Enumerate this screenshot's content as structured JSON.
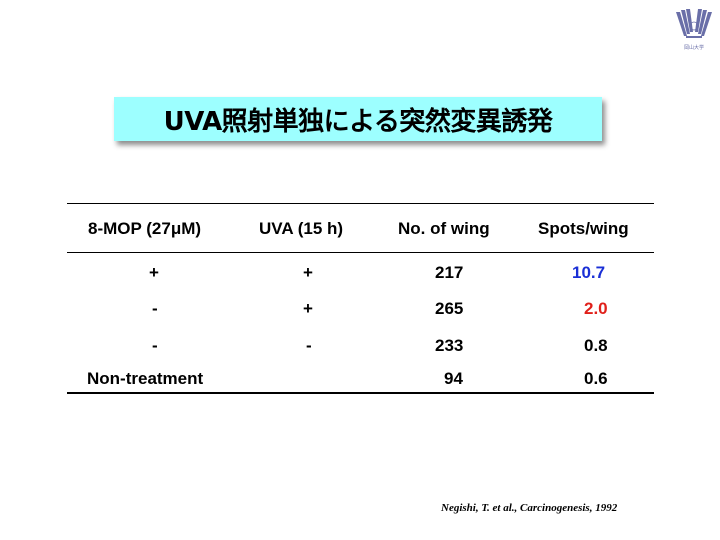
{
  "logo": {
    "text": "岡山大学",
    "color": "#6a6fa8"
  },
  "title": "UVA照射単独による突然変異誘発",
  "table": {
    "headers": [
      "8-MOP (27μM)",
      "UVA (15 h)",
      "No. of wing",
      "Spots/wing"
    ],
    "rows": [
      [
        "+",
        "+",
        "217",
        "10.7"
      ],
      [
        "-",
        "+",
        "265",
        "2.0"
      ],
      [
        "-",
        "-",
        "233",
        "0.8"
      ],
      [
        "Non-treatment",
        "",
        "94",
        "0.6"
      ]
    ],
    "highlight_colors": {
      "row0_spots": "#1a2fd6",
      "row1_spots": "#e0201a"
    }
  },
  "citation": "Negishi, T. et al., Carcinogenesis, 1992"
}
